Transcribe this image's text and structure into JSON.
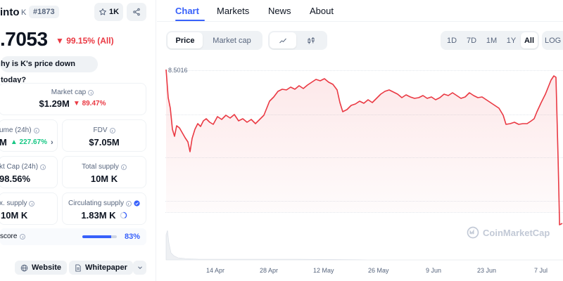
{
  "coin": {
    "name": "into",
    "symbol": "K",
    "rank": "#1873",
    "watchlist_count": "1K",
    "price": ".7053",
    "change": "99.15% (All)",
    "why_question": "hy is K's price down today?"
  },
  "stats": {
    "market_cap": {
      "label": "Market cap",
      "value": "$1.29M",
      "change": "89.47%"
    },
    "volume": {
      "label": "ume (24h)",
      "value": "M",
      "change": "227.67%"
    },
    "fdv": {
      "label": "FDV",
      "value": "$7.05M"
    },
    "vol_mcap": {
      "label": "kt Cap (24h)",
      "value": "98.56%"
    },
    "total_supply": {
      "label": "Total supply",
      "value": "10M K"
    },
    "max_supply": {
      "label": "x. supply",
      "value": "10M K"
    },
    "circ_supply": {
      "label": "Circulating supply",
      "value": "1.83M K"
    },
    "score": {
      "label": "score",
      "value": "83%",
      "fraction": 0.83
    }
  },
  "links": {
    "website": "Website",
    "whitepaper": "Whitepaper"
  },
  "tabs": [
    "Chart",
    "Markets",
    "News",
    "About"
  ],
  "chart_controls": {
    "metric": [
      "Price",
      "Market cap"
    ],
    "ranges": [
      "1D",
      "7D",
      "1M",
      "1Y",
      "All"
    ],
    "active_range": "All",
    "scale_label": "LOG"
  },
  "colors": {
    "accent": "#3861fb",
    "negative": "#ea3943",
    "positive": "#16c784",
    "line": "#ea3943"
  },
  "chart": {
    "high_label": "8.5016",
    "watermark": "CoinMarketCap",
    "x_ticks": [
      "14 Apr",
      "28 Apr",
      "12 May",
      "26 May",
      "9 Jun",
      "23 Jun",
      "7 Jul"
    ]
  }
}
